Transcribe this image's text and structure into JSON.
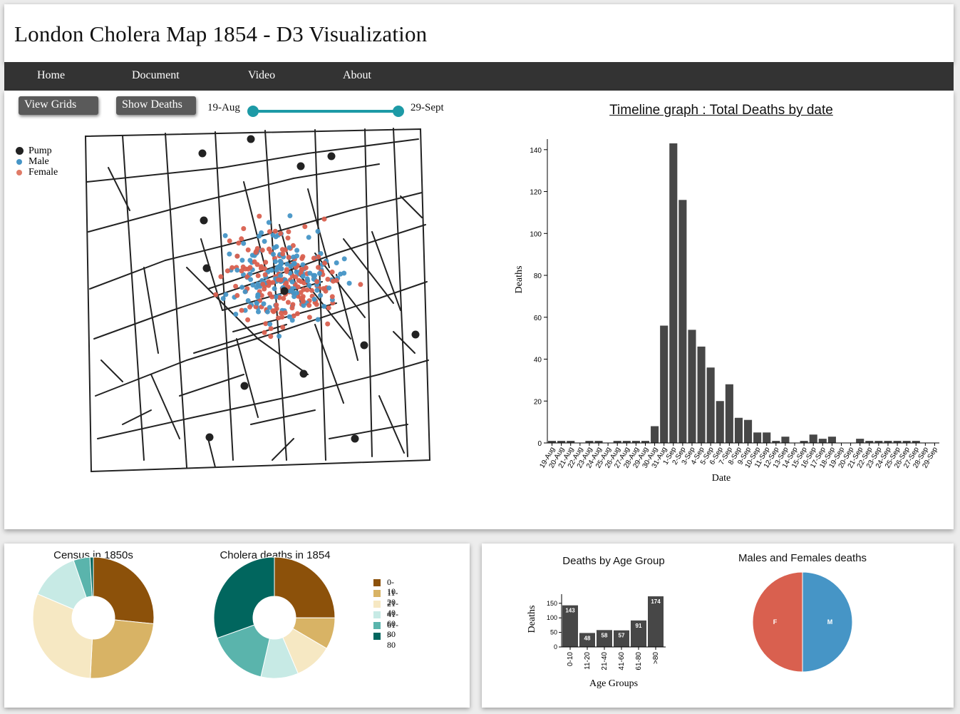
{
  "header": {
    "title": "London Cholera Map 1854 - D3 Visualization"
  },
  "nav": {
    "items": [
      "Home",
      "Document",
      "Video",
      "About"
    ]
  },
  "controls": {
    "view_grids": "View Grids",
    "show_deaths": "Show Deaths",
    "slider_start": "19-Aug",
    "slider_end": "29-Sept",
    "slider_color": "#1d9aa6"
  },
  "map_legend": [
    {
      "label": "Pump",
      "color": "#222222"
    },
    {
      "label": "Male",
      "color": "#4695c6"
    },
    {
      "label": "Female",
      "color": "#e07b67"
    }
  ],
  "colors": {
    "bar": "#474747",
    "male": "#4695c6",
    "female": "#d9604f",
    "pump": "#222222"
  },
  "chart_data": [
    {
      "id": "timeline",
      "type": "bar",
      "title": "Timeline graph : Total Deaths by date",
      "xlabel": "Date",
      "ylabel": "Deaths",
      "ylim": [
        0,
        143
      ],
      "yticks": [
        0,
        20,
        40,
        60,
        80,
        100,
        120,
        140
      ],
      "categories": [
        "19-Aug",
        "20-Aug",
        "21-Aug",
        "22-Aug",
        "23-Aug",
        "24-Aug",
        "25-Aug",
        "26-Aug",
        "27-Aug",
        "28-Aug",
        "29-Aug",
        "30-Aug",
        "31-Aug",
        "1-Sep",
        "2-Sep",
        "3-Sep",
        "4-Sep",
        "5-Sep",
        "6-Sep",
        "7-Sep",
        "8-Sep",
        "9-Sep",
        "10-Sep",
        "11-Sep",
        "12-Sep",
        "13-Sep",
        "14-Sep",
        "15-Sep",
        "16-Sep",
        "17-Sep",
        "18-Sep",
        "19-Sep",
        "20-Sep",
        "21-Sep",
        "22-Sep",
        "23-Sep",
        "24-Sep",
        "25-Sep",
        "26-Sep",
        "27-Sep",
        "28-Sep",
        "29-Sep"
      ],
      "values": [
        1,
        1,
        1,
        0,
        1,
        1,
        0,
        1,
        1,
        1,
        1,
        8,
        56,
        143,
        116,
        54,
        46,
        36,
        20,
        28,
        12,
        11,
        5,
        5,
        1,
        3,
        0,
        1,
        4,
        2,
        3,
        0,
        0,
        2,
        1,
        1,
        1,
        1,
        1,
        1,
        0,
        0
      ]
    },
    {
      "id": "census",
      "type": "pie",
      "title": "Census in 1850s",
      "categories": [
        "0-10",
        "11-20",
        "21-40",
        "41-60",
        "61-80",
        "> 80"
      ],
      "values": [
        26.6,
        24.2,
        30.6,
        13.3,
        4.4,
        0.9
      ],
      "colors": [
        "#8c510a",
        "#d8b365",
        "#f6e8c3",
        "#c7eae5",
        "#5ab4ac",
        "#01665e"
      ]
    },
    {
      "id": "cholera_deaths",
      "type": "pie",
      "title": "Cholera deaths in 1854",
      "categories": [
        "0-10",
        "11-20",
        "21-40",
        "41-60",
        "61-80",
        "> 80"
      ],
      "values": [
        143,
        48,
        58,
        57,
        91,
        174
      ],
      "colors": [
        "#8c510a",
        "#d8b365",
        "#f6e8c3",
        "#c7eae5",
        "#5ab4ac",
        "#01665e"
      ]
    },
    {
      "id": "age_groups",
      "type": "bar",
      "title": "Deaths by Age Group",
      "xlabel": "Age Groups",
      "ylabel": "Deaths",
      "ylim": [
        0,
        174
      ],
      "yticks": [
        0,
        50,
        100,
        150
      ],
      "categories": [
        "0-10",
        "11-20",
        "21-40",
        "41-60",
        "61-80",
        ">80"
      ],
      "values": [
        143,
        48,
        58,
        57,
        91,
        174
      ]
    },
    {
      "id": "gender",
      "type": "pie",
      "title": "Males and Females deaths",
      "categories": [
        "M",
        "F"
      ],
      "values": [
        50,
        50
      ],
      "colors": [
        "#4695c6",
        "#d9604f"
      ]
    }
  ]
}
